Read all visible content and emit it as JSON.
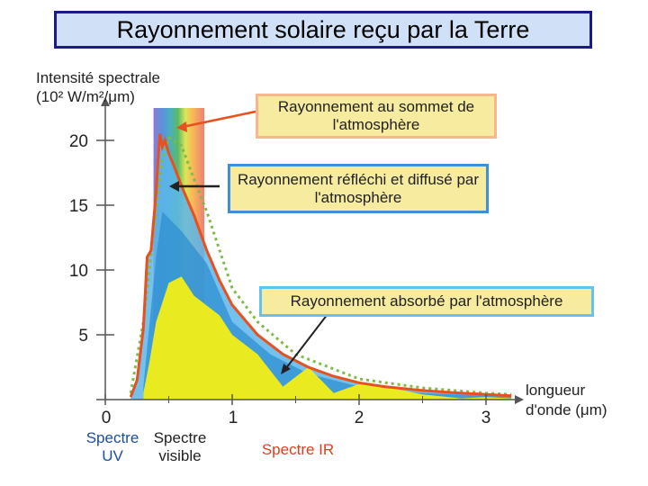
{
  "title": "Rayonnement solaire reçu par la Terre",
  "chart_data": {
    "type": "area",
    "ylabel": "Intensité spectrale (10² W/m²/μm)",
    "xlabel": "longueur d'onde (μm)",
    "xlim": [
      0,
      3.2
    ],
    "ylim": [
      0,
      22
    ],
    "xticks": [
      "0",
      "1",
      "2",
      "3"
    ],
    "yticks": [
      "5",
      "10",
      "15",
      "20"
    ],
    "series": [
      {
        "name": "Rayonnement au sommet de l'atmosphère",
        "color": "#e8501e",
        "x": [
          0.2,
          0.25,
          0.3,
          0.33,
          0.36,
          0.4,
          0.43,
          0.45,
          0.47,
          0.5,
          0.55,
          0.6,
          0.7,
          0.8,
          0.9,
          1.0,
          1.2,
          1.4,
          1.6,
          1.8,
          2.0,
          2.2,
          2.5,
          2.8,
          3.0,
          3.2
        ],
        "y": [
          0.2,
          1.5,
          5.5,
          11.0,
          11.5,
          16.0,
          20.5,
          19.5,
          20.0,
          19.0,
          17.8,
          16.5,
          14.2,
          11.5,
          9.2,
          7.3,
          5.0,
          3.5,
          2.5,
          1.8,
          1.3,
          1.0,
          0.7,
          0.5,
          0.4,
          0.3
        ]
      },
      {
        "name": "Rayonnement réfléchi et diffusé par l'atmosphère",
        "color": "#3aa4e8",
        "x": [
          0.3,
          0.35,
          0.4,
          0.45,
          0.5,
          0.6,
          0.8,
          1.0,
          1.3,
          1.6,
          2.0,
          2.5,
          3.0,
          3.2
        ],
        "y": [
          1.0,
          6.0,
          11.0,
          14.5,
          14.0,
          13.0,
          10.5,
          6.0,
          3.5,
          2.0,
          1.0,
          0.5,
          0.3,
          0.2
        ]
      },
      {
        "name": "Rayonnement absorbé par l'atmosphère",
        "color": "#f3ee17",
        "x": [
          0.3,
          0.35,
          0.4,
          0.5,
          0.6,
          0.7,
          0.9,
          1.0,
          1.2,
          1.4,
          1.6,
          1.8,
          2.0,
          2.2,
          2.5,
          2.8,
          3.0,
          3.2
        ],
        "y": [
          0.5,
          3.0,
          6.0,
          9.0,
          9.5,
          8.0,
          6.5,
          5.0,
          3.5,
          1.0,
          2.5,
          0.5,
          1.2,
          1.0,
          0.4,
          0.1,
          0.2,
          0.1
        ]
      }
    ],
    "reference_curve": {
      "style": "dotted",
      "color": "#7dbb4a",
      "x": [
        0.2,
        0.3,
        0.4,
        0.45,
        0.5,
        0.6,
        0.7,
        0.8,
        1.0,
        1.2,
        1.5,
        2.0,
        2.5,
        3.0,
        3.2
      ],
      "y": [
        0.5,
        6.0,
        14.5,
        18.5,
        20.2,
        19.6,
        17.0,
        14.5,
        8.6,
        6.0,
        3.5,
        1.6,
        0.9,
        0.5,
        0.4
      ]
    },
    "bands": [
      {
        "label": "Spectre UV",
        "range": [
          0.3,
          0.4
        ],
        "color": "#1a4fa0"
      },
      {
        "label": "Spectre visible",
        "range": [
          0.4,
          0.78
        ],
        "color": "#222222"
      },
      {
        "label": "Spectre IR",
        "range": [
          0.78,
          3.2
        ],
        "color": "#d9401e"
      }
    ]
  },
  "annotations": {
    "top": "Rayonnement au sommet de l'atmosphère",
    "reflect": "Rayonnement réfléchi et diffusé par l'atmosphère",
    "absorb": "Rayonnement absorbé par l'atmosphère"
  },
  "labels": {
    "ylabel_line1": "Intensité spectrale",
    "ylabel_line2": "(10² W/m²/μm)",
    "xlabel_line1": "longueur",
    "xlabel_line2": "d'onde (μm)",
    "uv_line1": "Spectre",
    "uv_line2": "UV",
    "visible_line1": "Spectre",
    "visible_line2": "visible",
    "ir": "Spectre IR"
  }
}
